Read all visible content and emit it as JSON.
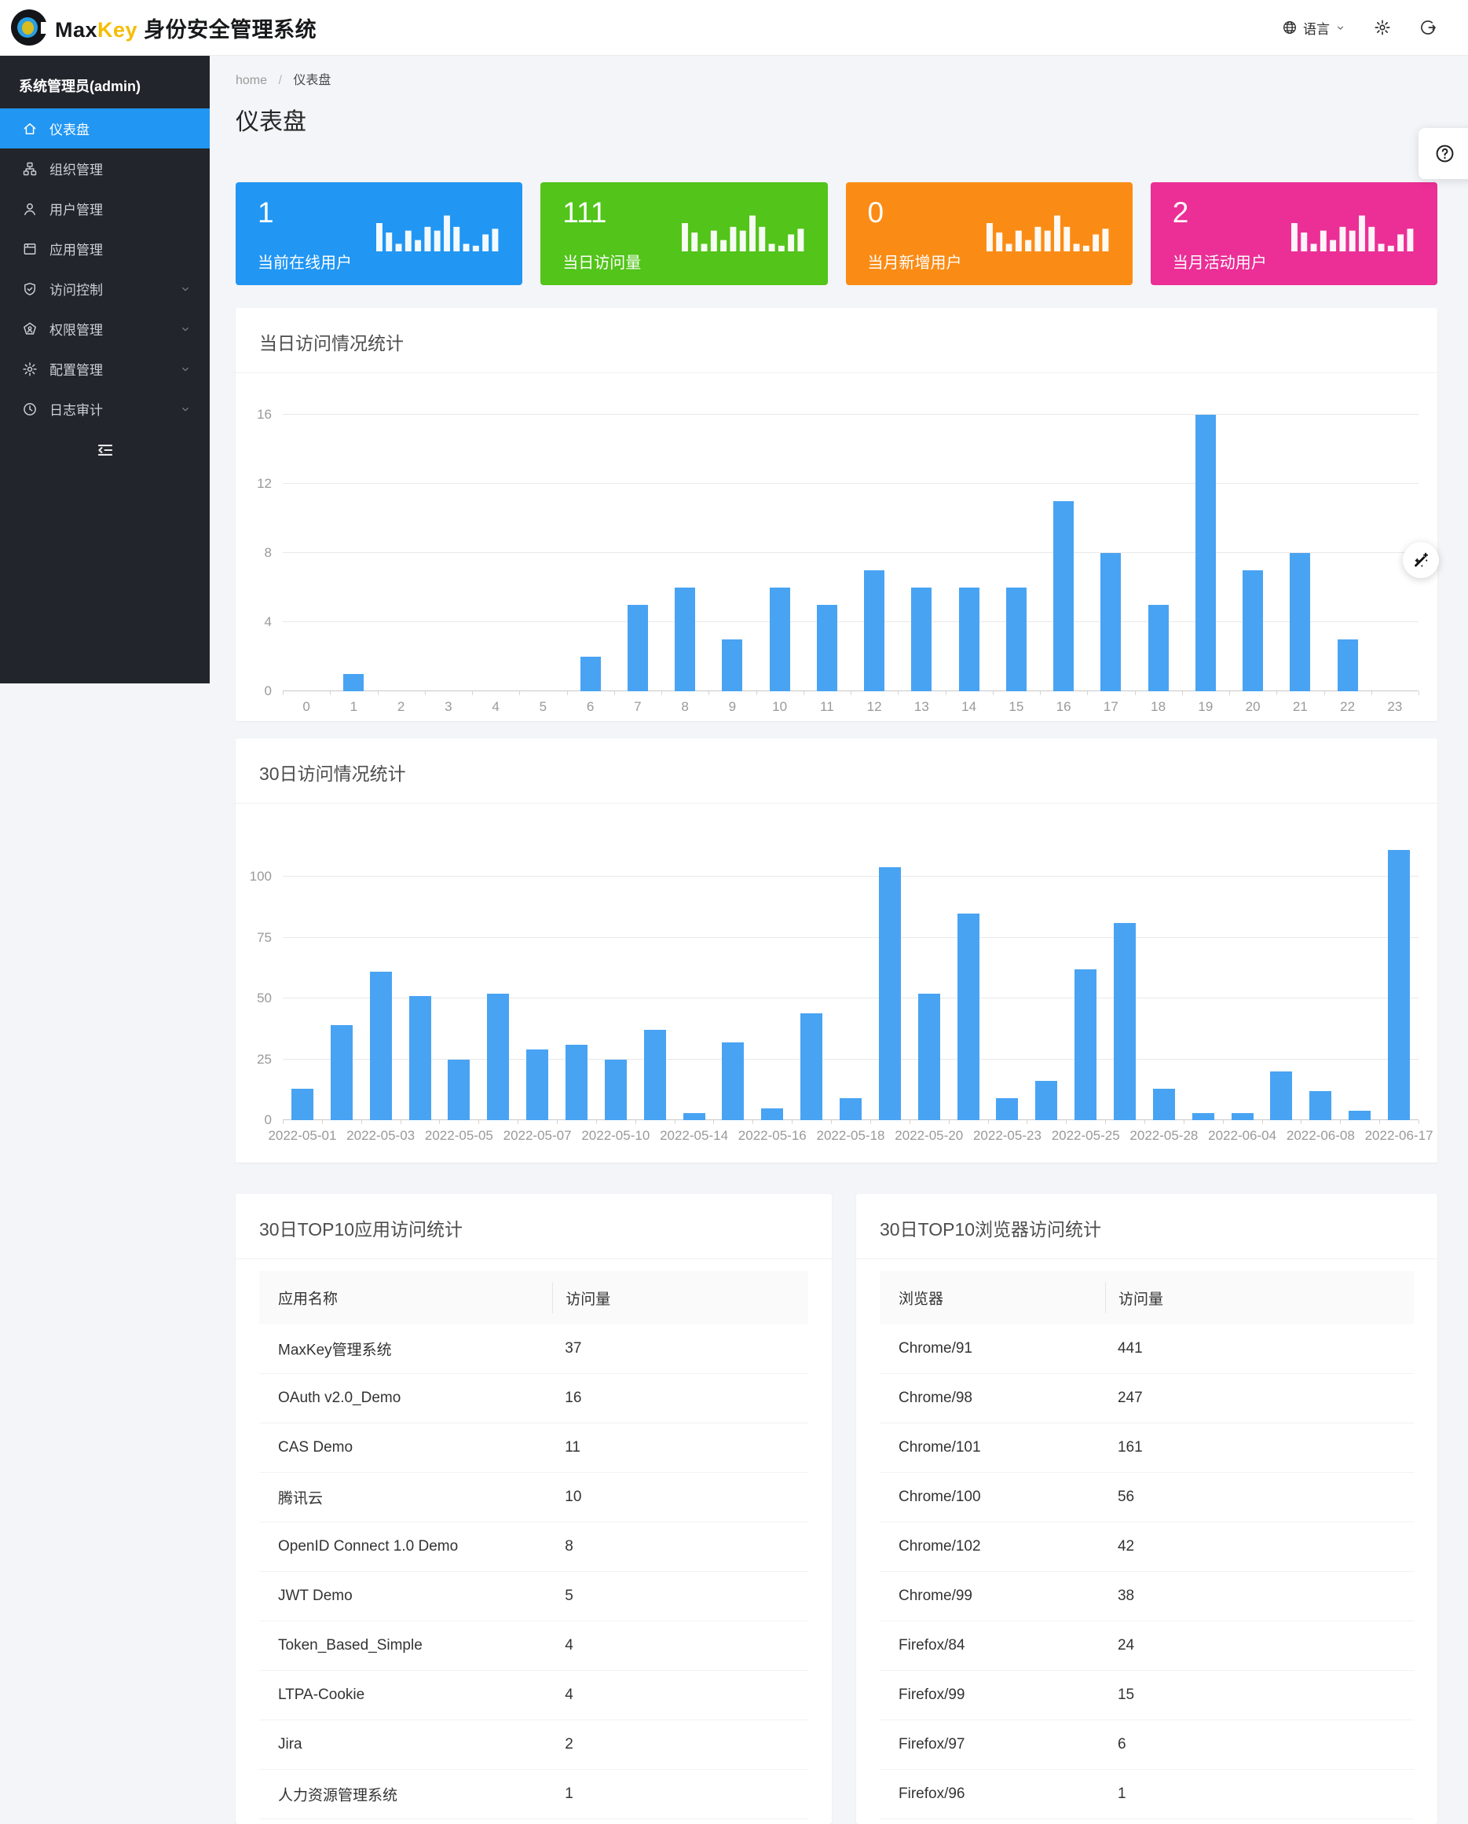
{
  "header": {
    "brand": {
      "max": "Max",
      "key": "Key",
      "suffix": " 身份安全管理系统"
    },
    "language_label": "语言"
  },
  "sidebar": {
    "user_title": "系统管理员(admin)",
    "items": [
      {
        "label": "仪表盘",
        "icon": "home-icon",
        "icon_key": "home",
        "active": true,
        "expandable": false
      },
      {
        "label": "组织管理",
        "icon": "org-icon",
        "icon_key": "org",
        "active": false,
        "expandable": false
      },
      {
        "label": "用户管理",
        "icon": "user-icon",
        "icon_key": "user",
        "active": false,
        "expandable": false
      },
      {
        "label": "应用管理",
        "icon": "app-icon",
        "icon_key": "app",
        "active": false,
        "expandable": false
      },
      {
        "label": "访问控制",
        "icon": "shield-check-icon",
        "icon_key": "shield",
        "active": false,
        "expandable": true
      },
      {
        "label": "权限管理",
        "icon": "permission-icon",
        "icon_key": "perm",
        "active": false,
        "expandable": true
      },
      {
        "label": "配置管理",
        "icon": "gear-icon",
        "icon_key": "gear",
        "active": false,
        "expandable": true
      },
      {
        "label": "日志审计",
        "icon": "clock-icon",
        "icon_key": "clock",
        "active": false,
        "expandable": true
      }
    ]
  },
  "breadcrumb": {
    "root": "home",
    "separator": "/",
    "current": "仪表盘"
  },
  "page": {
    "title": "仪表盘"
  },
  "stat_cards": [
    {
      "value": "1",
      "label": "当前在线用户",
      "color": "#2196f3"
    },
    {
      "value": "111",
      "label": "当日访问量",
      "color": "#52c41a"
    },
    {
      "value": "0",
      "label": "当月新增用户",
      "color": "#fa8c16"
    },
    {
      "value": "2",
      "label": "当月活动用户",
      "color": "#eb2f96"
    }
  ],
  "chart_data": [
    {
      "type": "bar",
      "title": "当日访问情况统计",
      "categories": [
        "0",
        "1",
        "2",
        "3",
        "4",
        "5",
        "6",
        "7",
        "8",
        "9",
        "10",
        "11",
        "12",
        "13",
        "14",
        "15",
        "16",
        "17",
        "18",
        "19",
        "20",
        "21",
        "22",
        "23"
      ],
      "values": [
        0,
        1,
        0,
        0,
        0,
        0,
        2,
        5,
        6,
        3,
        6,
        5,
        7,
        6,
        6,
        6,
        11,
        8,
        5,
        16,
        7,
        8,
        3,
        0
      ],
      "xlabel": "",
      "ylabel": "",
      "ylim": [
        0,
        16
      ],
      "yticks": [
        0,
        4,
        8,
        12,
        16
      ],
      "bar_color": "#49a3f3",
      "grid": true,
      "legend": "none"
    },
    {
      "type": "bar",
      "title": "30日访问情况统计",
      "categories": [
        "2022-05-01",
        "",
        "2022-05-03",
        "",
        "2022-05-05",
        "",
        "2022-05-07",
        "",
        "2022-05-10",
        "",
        "2022-05-14",
        "",
        "2022-05-16",
        "",
        "2022-05-18",
        "",
        "2022-05-20",
        "",
        "2022-05-23",
        "",
        "2022-05-25",
        "",
        "2022-05-28",
        "",
        "2022-06-04",
        "",
        "2022-06-08",
        "",
        "2022-06-17"
      ],
      "values": [
        13,
        39,
        61,
        51,
        25,
        52,
        29,
        31,
        25,
        37,
        3,
        32,
        5,
        44,
        9,
        104,
        52,
        85,
        9,
        16,
        62,
        81,
        13,
        3,
        3,
        20,
        12,
        4,
        111
      ],
      "xlabel": "",
      "ylabel": "",
      "ylim": [
        0,
        100
      ],
      "yticks": [
        0,
        25,
        50,
        75,
        100
      ],
      "bar_color": "#49a3f3",
      "grid": true,
      "legend": "none"
    }
  ],
  "tables": [
    {
      "title": "30日TOP10应用访问统计",
      "columns": [
        "应用名称",
        "访问量"
      ],
      "rows": [
        [
          "MaxKey管理系统",
          "37"
        ],
        [
          "OAuth v2.0_Demo",
          "16"
        ],
        [
          "CAS Demo",
          "11"
        ],
        [
          "腾讯云",
          "10"
        ],
        [
          "OpenID Connect 1.0 Demo",
          "8"
        ],
        [
          "JWT Demo",
          "5"
        ],
        [
          "Token_Based_Simple",
          "4"
        ],
        [
          "LTPA-Cookie",
          "4"
        ],
        [
          "Jira",
          "2"
        ],
        [
          "人力资源管理系统",
          "1"
        ]
      ]
    },
    {
      "title": "30日TOP10浏览器访问统计",
      "columns": [
        "浏览器",
        "访问量"
      ],
      "rows": [
        [
          "Chrome/91",
          "441"
        ],
        [
          "Chrome/98",
          "247"
        ],
        [
          "Chrome/101",
          "161"
        ],
        [
          "Chrome/100",
          "56"
        ],
        [
          "Chrome/102",
          "42"
        ],
        [
          "Chrome/99",
          "38"
        ],
        [
          "Firefox/84",
          "24"
        ],
        [
          "Firefox/99",
          "15"
        ],
        [
          "Firefox/97",
          "6"
        ],
        [
          "Firefox/96",
          "1"
        ]
      ]
    }
  ],
  "floating": {
    "help_icon": "question-icon",
    "wand_icon": "magic-wand-icon"
  }
}
